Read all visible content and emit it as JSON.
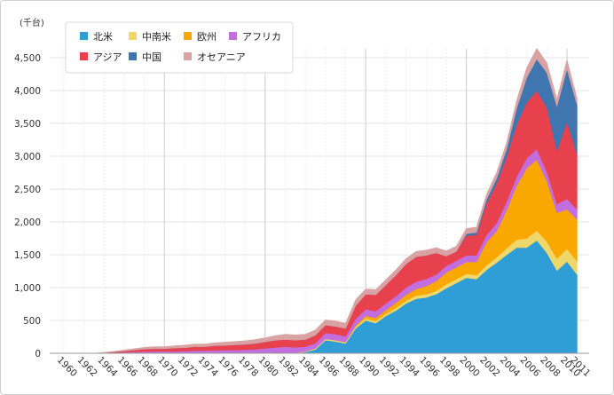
{
  "chart_data": {
    "type": "area",
    "stacked": true,
    "title": "",
    "unit_label": "(千台)",
    "xlabel": "",
    "ylabel": "",
    "ylim": [
      0,
      4500
    ],
    "y_ticks": [
      0,
      500,
      1000,
      1500,
      2000,
      2500,
      3000,
      3500,
      4000,
      4500
    ],
    "y_tick_labels": [
      "0",
      "500",
      "1,000",
      "1,500",
      "2,000",
      "2,500",
      "3,000",
      "3,500",
      "4,000",
      "4,500"
    ],
    "x_tick_labels": [
      "1960",
      "1962",
      "1964",
      "1966",
      "1968",
      "1970",
      "1972",
      "1974",
      "1976",
      "1978",
      "1980",
      "1982",
      "1984",
      "1986",
      "1988",
      "1990",
      "1992",
      "1994",
      "1996",
      "1998",
      "2000",
      "2002",
      "2004",
      "2006",
      "2008",
      "2010",
      "2011"
    ],
    "x_gridlines_years": [
      1970,
      1980,
      1990,
      2000,
      2010
    ],
    "legend_position": "top-left",
    "x": [
      1960,
      1961,
      1962,
      1963,
      1964,
      1965,
      1966,
      1967,
      1968,
      1969,
      1970,
      1971,
      1972,
      1973,
      1974,
      1975,
      1976,
      1977,
      1978,
      1979,
      1980,
      1981,
      1982,
      1983,
      1984,
      1985,
      1986,
      1987,
      1988,
      1989,
      1990,
      1991,
      1992,
      1993,
      1994,
      1995,
      1996,
      1997,
      1998,
      1999,
      2000,
      2001,
      2002,
      2003,
      2004,
      2005,
      2006,
      2007,
      2008,
      2009,
      2010,
      2011
    ],
    "series": [
      {
        "name": "北米",
        "color": "#2f9ed6",
        "values": [
          0,
          0,
          0,
          0,
          0,
          0,
          0,
          0,
          0,
          0,
          0,
          0,
          0,
          0,
          0,
          0,
          0,
          0,
          0,
          0,
          0,
          0,
          0,
          0,
          20,
          60,
          200,
          180,
          150,
          380,
          500,
          460,
          570,
          650,
          760,
          830,
          850,
          900,
          990,
          1070,
          1150,
          1130,
          1270,
          1380,
          1500,
          1610,
          1610,
          1720,
          1530,
          1260,
          1400,
          1200
        ]
      },
      {
        "name": "中南米",
        "color": "#f0d76a",
        "values": [
          0,
          0,
          0,
          0,
          0,
          0,
          0,
          0,
          0,
          0,
          0,
          0,
          0,
          0,
          0,
          0,
          0,
          0,
          0,
          0,
          5,
          8,
          10,
          10,
          10,
          15,
          20,
          20,
          20,
          25,
          30,
          30,
          30,
          40,
          40,
          50,
          50,
          50,
          60,
          60,
          60,
          60,
          70,
          80,
          100,
          120,
          140,
          150,
          170,
          180,
          190,
          200
        ]
      },
      {
        "name": "欧州",
        "color": "#f8a800",
        "values": [
          0,
          0,
          0,
          0,
          0,
          0,
          0,
          0,
          0,
          0,
          0,
          0,
          0,
          0,
          0,
          0,
          0,
          0,
          0,
          0,
          0,
          0,
          0,
          0,
          0,
          0,
          0,
          0,
          0,
          20,
          40,
          50,
          60,
          80,
          90,
          100,
          120,
          150,
          180,
          180,
          180,
          200,
          350,
          400,
          580,
          820,
          1070,
          1080,
          920,
          700,
          600,
          640
        ]
      },
      {
        "name": "アフリカ",
        "color": "#c36ee0",
        "values": [
          0,
          0,
          0,
          0,
          5,
          10,
          15,
          20,
          25,
          30,
          30,
          30,
          35,
          40,
          40,
          45,
          50,
          50,
          55,
          60,
          70,
          80,
          90,
          80,
          70,
          80,
          90,
          90,
          90,
          100,
          100,
          100,
          100,
          100,
          110,
          110,
          110,
          100,
          100,
          100,
          100,
          100,
          110,
          120,
          130,
          140,
          150,
          160,
          140,
          130,
          160,
          150
        ]
      },
      {
        "name": "アジア",
        "color": "#e8414e",
        "values": [
          0,
          0,
          0,
          0,
          5,
          10,
          20,
          30,
          40,
          40,
          40,
          50,
          50,
          60,
          60,
          70,
          70,
          80,
          80,
          90,
          100,
          110,
          110,
          110,
          110,
          120,
          120,
          120,
          120,
          200,
          230,
          250,
          280,
          320,
          360,
          380,
          360,
          330,
          150,
          140,
          300,
          310,
          480,
          600,
          680,
          790,
          850,
          890,
          980,
          810,
          1180,
          840
        ]
      },
      {
        "name": "中国",
        "color": "#3f76b0",
        "values": [
          0,
          0,
          0,
          0,
          0,
          0,
          0,
          0,
          0,
          0,
          0,
          0,
          0,
          0,
          0,
          0,
          0,
          0,
          0,
          0,
          0,
          0,
          0,
          0,
          0,
          0,
          0,
          0,
          0,
          0,
          0,
          0,
          0,
          0,
          0,
          0,
          0,
          0,
          0,
          0,
          30,
          40,
          60,
          80,
          120,
          250,
          380,
          480,
          530,
          680,
          800,
          750
        ]
      },
      {
        "name": "オセアニア",
        "color": "#d9a3a3",
        "values": [
          0,
          0,
          0,
          0,
          5,
          10,
          15,
          20,
          25,
          30,
          30,
          35,
          40,
          40,
          40,
          45,
          50,
          50,
          55,
          60,
          60,
          70,
          80,
          80,
          80,
          80,
          80,
          80,
          80,
          90,
          80,
          80,
          80,
          80,
          80,
          80,
          80,
          80,
          80,
          80,
          80,
          80,
          80,
          90,
          100,
          120,
          150,
          160,
          150,
          110,
          140,
          100
        ]
      }
    ]
  }
}
